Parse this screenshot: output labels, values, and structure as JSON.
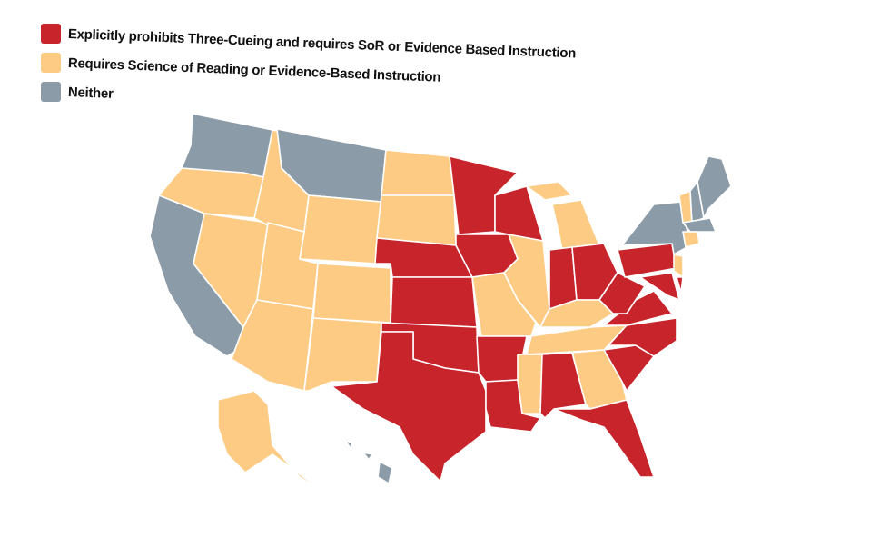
{
  "legend": {
    "items": [
      {
        "label": "Explicitly prohibits Three-Cueing and requires SoR or Evidence Based Instruction",
        "color": "#c8242b"
      },
      {
        "label": "Requires Science of Reading or Evidence-Based Instruction",
        "color": "#fdcb84"
      },
      {
        "label": "Neither",
        "color": "#8c9ba8"
      }
    ]
  }
}
